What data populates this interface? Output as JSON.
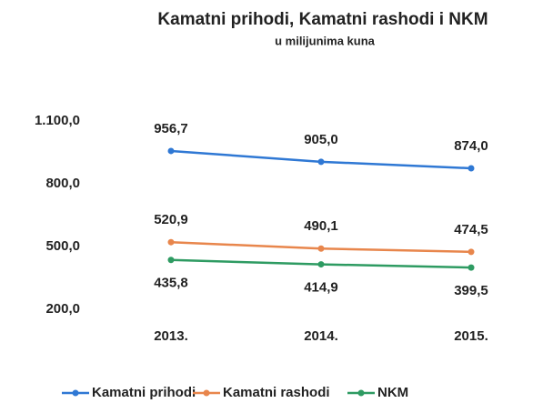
{
  "chart_data": {
    "type": "line",
    "title": "Kamatni prihodi, Kamatni rashodi i NKM",
    "subtitle": "u milijunima kuna",
    "categories": [
      "2013.",
      "2014.",
      "2015."
    ],
    "series": [
      {
        "name": "Kamatni prihodi",
        "color": "#2f78d4",
        "values": [
          956.7,
          905.0,
          874.0
        ],
        "value_labels": [
          "956,7",
          "905,0",
          "874,0"
        ]
      },
      {
        "name": "Kamatni rashodi",
        "color": "#e8864c",
        "values": [
          520.9,
          490.1,
          474.5
        ],
        "value_labels": [
          "520,9",
          "490,1",
          "474,5"
        ]
      },
      {
        "name": "NKM",
        "color": "#2e9b62",
        "values": [
          435.8,
          414.9,
          399.5
        ],
        "value_labels": [
          "435,8",
          "414,9",
          "399,5"
        ]
      }
    ],
    "ylim": [
      200,
      1100
    ],
    "yticks": [
      {
        "value": 1100,
        "label": "1.100,0"
      },
      {
        "value": 800,
        "label": "800,0"
      },
      {
        "value": 500,
        "label": "500,0"
      },
      {
        "value": 200,
        "label": "200,0"
      }
    ],
    "grid": false
  }
}
